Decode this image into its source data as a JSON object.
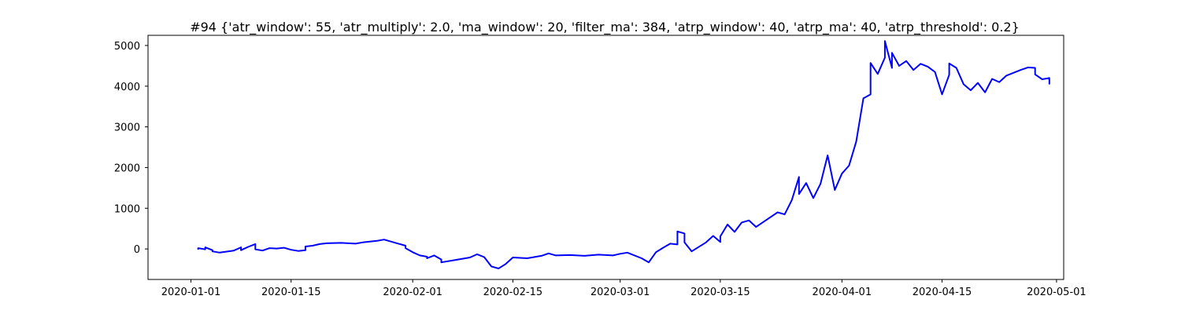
{
  "chart_data": {
    "type": "line",
    "title": "#94 {'atr_window': 55, 'atr_multiply': 2.0, 'ma_window': 20, 'filter_ma': 384, 'atrp_window': 40, 'atrp_ma': 40, 'atrp_threshold': 0.2}",
    "xlabel": "",
    "ylabel": "",
    "grid": false,
    "legend": "none",
    "x_axis": {
      "type": "date",
      "range": [
        "2019-12-26",
        "2020-05-02"
      ],
      "ticks": [
        "2020-01-01",
        "2020-01-15",
        "2020-02-01",
        "2020-02-15",
        "2020-03-01",
        "2020-03-15",
        "2020-04-01",
        "2020-04-15",
        "2020-05-01"
      ]
    },
    "y_axis": {
      "range": [
        -750,
        5250
      ],
      "ticks": [
        0,
        1000,
        2000,
        3000,
        4000,
        5000
      ]
    },
    "series": [
      {
        "color": "#0000ff",
        "points": [
          [
            "2020-01-02",
            0
          ],
          [
            "2020-01-02",
            20
          ],
          [
            "2020-01-03",
            -10
          ],
          [
            "2020-01-03",
            40
          ],
          [
            "2020-01-04",
            -30
          ],
          [
            "2020-01-04",
            -60
          ],
          [
            "2020-01-05",
            -90
          ],
          [
            "2020-01-07",
            -40
          ],
          [
            "2020-01-08",
            40
          ],
          [
            "2020-01-08",
            -30
          ],
          [
            "2020-01-09",
            50
          ],
          [
            "2020-01-10",
            120
          ],
          [
            "2020-01-10",
            -10
          ],
          [
            "2020-01-11",
            -40
          ],
          [
            "2020-01-12",
            20
          ],
          [
            "2020-01-13",
            10
          ],
          [
            "2020-01-14",
            30
          ],
          [
            "2020-01-15",
            -20
          ],
          [
            "2020-01-16",
            -50
          ],
          [
            "2020-01-17",
            -30
          ],
          [
            "2020-01-17",
            60
          ],
          [
            "2020-01-18",
            80
          ],
          [
            "2020-01-19",
            120
          ],
          [
            "2020-01-20",
            140
          ],
          [
            "2020-01-22",
            150
          ],
          [
            "2020-01-24",
            130
          ],
          [
            "2020-01-25",
            160
          ],
          [
            "2020-01-26",
            180
          ],
          [
            "2020-01-27",
            200
          ],
          [
            "2020-01-28",
            230
          ],
          [
            "2020-01-29",
            180
          ],
          [
            "2020-01-30",
            130
          ],
          [
            "2020-01-31",
            80
          ],
          [
            "2020-01-31",
            20
          ],
          [
            "2020-02-01",
            -80
          ],
          [
            "2020-02-02",
            -160
          ],
          [
            "2020-02-03",
            -190
          ],
          [
            "2020-02-03",
            -230
          ],
          [
            "2020-02-04",
            -160
          ],
          [
            "2020-02-05",
            -260
          ],
          [
            "2020-02-05",
            -330
          ],
          [
            "2020-02-07",
            -270
          ],
          [
            "2020-02-09",
            -210
          ],
          [
            "2020-02-10",
            -130
          ],
          [
            "2020-02-11",
            -200
          ],
          [
            "2020-02-12",
            -430
          ],
          [
            "2020-02-13",
            -480
          ],
          [
            "2020-02-14",
            -370
          ],
          [
            "2020-02-15",
            -210
          ],
          [
            "2020-02-17",
            -230
          ],
          [
            "2020-02-19",
            -170
          ],
          [
            "2020-02-20",
            -110
          ],
          [
            "2020-02-21",
            -160
          ],
          [
            "2020-02-23",
            -150
          ],
          [
            "2020-02-25",
            -170
          ],
          [
            "2020-02-27",
            -140
          ],
          [
            "2020-02-29",
            -160
          ],
          [
            "2020-03-01",
            -120
          ],
          [
            "2020-03-02",
            -90
          ],
          [
            "2020-03-04",
            -230
          ],
          [
            "2020-03-05",
            -330
          ],
          [
            "2020-03-06",
            -80
          ],
          [
            "2020-03-07",
            30
          ],
          [
            "2020-03-08",
            130
          ],
          [
            "2020-03-09",
            110
          ],
          [
            "2020-03-09",
            430
          ],
          [
            "2020-03-10",
            380
          ],
          [
            "2020-03-10",
            160
          ],
          [
            "2020-03-11",
            -60
          ],
          [
            "2020-03-13",
            160
          ],
          [
            "2020-03-14",
            320
          ],
          [
            "2020-03-15",
            170
          ],
          [
            "2020-03-15",
            310
          ],
          [
            "2020-03-16",
            600
          ],
          [
            "2020-03-17",
            420
          ],
          [
            "2020-03-18",
            650
          ],
          [
            "2020-03-19",
            700
          ],
          [
            "2020-03-20",
            540
          ],
          [
            "2020-03-22",
            780
          ],
          [
            "2020-03-23",
            900
          ],
          [
            "2020-03-24",
            850
          ],
          [
            "2020-03-25",
            1200
          ],
          [
            "2020-03-26",
            1770
          ],
          [
            "2020-03-26",
            1350
          ],
          [
            "2020-03-27",
            1620
          ],
          [
            "2020-03-28",
            1250
          ],
          [
            "2020-03-29",
            1600
          ],
          [
            "2020-03-30",
            2300
          ],
          [
            "2020-03-31",
            1450
          ],
          [
            "2020-04-01",
            1850
          ],
          [
            "2020-04-02",
            2050
          ],
          [
            "2020-04-03",
            2640
          ],
          [
            "2020-04-04",
            3700
          ],
          [
            "2020-04-05",
            3800
          ],
          [
            "2020-04-05",
            4570
          ],
          [
            "2020-04-06",
            4300
          ],
          [
            "2020-04-07",
            4700
          ],
          [
            "2020-04-07",
            5110
          ],
          [
            "2020-04-08",
            4450
          ],
          [
            "2020-04-08",
            4820
          ],
          [
            "2020-04-09",
            4500
          ],
          [
            "2020-04-10",
            4620
          ],
          [
            "2020-04-11",
            4400
          ],
          [
            "2020-04-12",
            4550
          ],
          [
            "2020-04-13",
            4480
          ],
          [
            "2020-04-14",
            4350
          ],
          [
            "2020-04-15",
            3800
          ],
          [
            "2020-04-16",
            4280
          ],
          [
            "2020-04-16",
            4560
          ],
          [
            "2020-04-17",
            4450
          ],
          [
            "2020-04-18",
            4050
          ],
          [
            "2020-04-19",
            3900
          ],
          [
            "2020-04-20",
            4080
          ],
          [
            "2020-04-21",
            3850
          ],
          [
            "2020-04-22",
            4180
          ],
          [
            "2020-04-23",
            4100
          ],
          [
            "2020-04-24",
            4260
          ],
          [
            "2020-04-25",
            4330
          ],
          [
            "2020-04-26",
            4400
          ],
          [
            "2020-04-27",
            4460
          ],
          [
            "2020-04-28",
            4450
          ],
          [
            "2020-04-28",
            4290
          ],
          [
            "2020-04-29",
            4170
          ],
          [
            "2020-04-30",
            4200
          ],
          [
            "2020-04-30",
            4060
          ]
        ]
      }
    ]
  }
}
